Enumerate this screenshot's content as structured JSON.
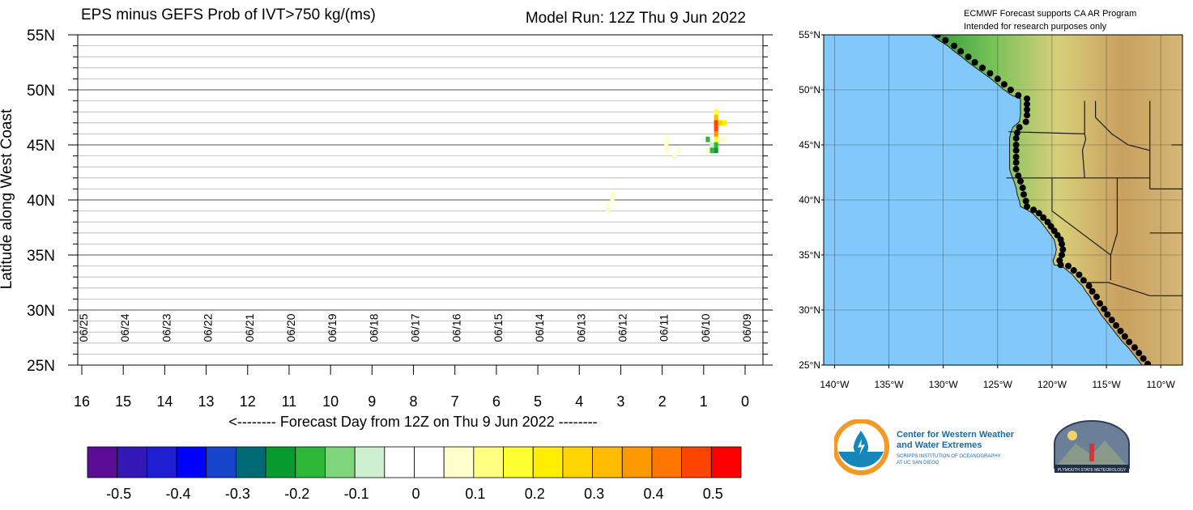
{
  "chart_data": [
    {
      "type": "heatmap",
      "title": "EPS minus GEFS Prob of IVT>750 kg/(ms)",
      "subtitle": "Model Run: 12Z Thu 9 Jun 2022",
      "xlabel": "<-------- Forecast Day from 12Z on Thu 9 Jun 2022 --------",
      "ylabel": "Latitude along West Coast",
      "xlim": [
        16,
        0
      ],
      "ylim": [
        25,
        55
      ],
      "x_ticks": [
        "16",
        "15",
        "14",
        "13",
        "12",
        "11",
        "10",
        "9",
        "8",
        "7",
        "6",
        "5",
        "4",
        "3",
        "2",
        "1",
        "0"
      ],
      "y_ticks": [
        "55N",
        "50N",
        "45N",
        "40N",
        "35N",
        "30N",
        "25N"
      ],
      "date_labels": [
        "06/25",
        "06/24",
        "06/23",
        "06/22",
        "06/21",
        "06/20",
        "06/19",
        "06/18",
        "06/17",
        "06/16",
        "06/15",
        "06/14",
        "06/13",
        "06/12",
        "06/11",
        "06/10",
        "06/09"
      ],
      "grid": true,
      "colorbar": {
        "tick_labels": [
          "-0.5",
          "-0.4",
          "-0.3",
          "-0.2",
          "-0.1",
          "0",
          "0.1",
          "0.2",
          "0.3",
          "0.4",
          "0.5"
        ],
        "colors": [
          "#5b0d97",
          "#3418b5",
          "#1e1ed2",
          "#0000ff",
          "#1645cb",
          "#006a74",
          "#079b2e",
          "#2db83a",
          "#7fd57c",
          "#cdefd0",
          "#ffffff",
          "#ffffff",
          "#ffffcc",
          "#ffff80",
          "#ffff33",
          "#ffee00",
          "#ffd400",
          "#ffbb00",
          "#ff9900",
          "#ff7700",
          "#ff4400",
          "#ff0000"
        ]
      },
      "cells": [
        {
          "day": 3.3,
          "lat": 39.0,
          "value": 0.05
        },
        {
          "day": 3.3,
          "lat": 39.5,
          "value": 0.05
        },
        {
          "day": 3.2,
          "lat": 40.0,
          "value": 0.05
        },
        {
          "day": 3.2,
          "lat": 40.5,
          "value": 0.05
        },
        {
          "day": 1.9,
          "lat": 45.5,
          "value": 0.05
        },
        {
          "day": 1.9,
          "lat": 45.0,
          "value": 0.05
        },
        {
          "day": 1.9,
          "lat": 44.5,
          "value": 0.05
        },
        {
          "day": 1.7,
          "lat": 44.0,
          "value": 0.05
        },
        {
          "day": 1.6,
          "lat": 44.5,
          "value": 0.05
        },
        {
          "day": 0.9,
          "lat": 44.5,
          "value": 0.05
        },
        {
          "day": 0.8,
          "lat": 45.0,
          "value": -0.1
        },
        {
          "day": 0.8,
          "lat": 44.5,
          "value": -0.2
        },
        {
          "day": 0.9,
          "lat": 45.5,
          "value": -0.2
        },
        {
          "day": 0.7,
          "lat": 44.5,
          "value": -0.25
        },
        {
          "day": 0.7,
          "lat": 45.0,
          "value": -0.2
        },
        {
          "day": 0.7,
          "lat": 45.5,
          "value": 0.15
        },
        {
          "day": 0.6,
          "lat": 45.5,
          "value": 0.05
        },
        {
          "day": 0.5,
          "lat": 45.5,
          "value": 0.05
        },
        {
          "day": 0.7,
          "lat": 46.0,
          "value": 0.35
        },
        {
          "day": 0.7,
          "lat": 46.5,
          "value": 0.48
        },
        {
          "day": 0.7,
          "lat": 47.0,
          "value": 0.48
        },
        {
          "day": 0.7,
          "lat": 47.5,
          "value": 0.3
        },
        {
          "day": 0.7,
          "lat": 48.0,
          "value": 0.2
        },
        {
          "day": 0.6,
          "lat": 47.0,
          "value": 0.25
        },
        {
          "day": 0.5,
          "lat": 47.0,
          "value": 0.22
        }
      ]
    },
    {
      "type": "map",
      "title": "ECMWF Forecast supports CA AR Program",
      "subtitle": "Intended for research purposes only",
      "lat_ticks": [
        "55°N",
        "50°N",
        "45°N",
        "40°N",
        "35°N",
        "30°N",
        "25°N"
      ],
      "lon_ticks": [
        "140°W",
        "135°W",
        "130°W",
        "125°W",
        "120°W",
        "115°W",
        "110°W"
      ],
      "lat_range": [
        25,
        55
      ],
      "lon_range": [
        -141,
        -108
      ],
      "coast_points": [
        [
          -130.5,
          55
        ],
        [
          -129.8,
          54.5
        ],
        [
          -129,
          54
        ],
        [
          -128.4,
          53.5
        ],
        [
          -127.7,
          53
        ],
        [
          -127.1,
          52.5
        ],
        [
          -126.4,
          52
        ],
        [
          -125.7,
          51.5
        ],
        [
          -125,
          51
        ],
        [
          -124.4,
          50.5
        ],
        [
          -123.8,
          50
        ],
        [
          -123.1,
          49.5
        ],
        [
          -122.3,
          49.2
        ],
        [
          -122.3,
          48.7
        ],
        [
          -122.3,
          48.2
        ],
        [
          -122.3,
          47.7
        ],
        [
          -122.4,
          47.1
        ],
        [
          -123.0,
          46.6
        ],
        [
          -123.2,
          46.1
        ],
        [
          -123.3,
          45.6
        ],
        [
          -123.3,
          45.0
        ],
        [
          -123.3,
          44.5
        ],
        [
          -123.3,
          43.9
        ],
        [
          -123.3,
          43.4
        ],
        [
          -123.3,
          42.8
        ],
        [
          -123.1,
          42.2
        ],
        [
          -122.9,
          41.7
        ],
        [
          -122.7,
          41.1
        ],
        [
          -122.6,
          40.5
        ],
        [
          -122.4,
          39.9
        ],
        [
          -122.3,
          39.4
        ],
        [
          -121.7,
          39.1
        ],
        [
          -121.2,
          38.8
        ],
        [
          -120.8,
          38.4
        ],
        [
          -120.4,
          38.0
        ],
        [
          -120.1,
          37.6
        ],
        [
          -119.8,
          37.2
        ],
        [
          -119.5,
          36.8
        ],
        [
          -119.2,
          36.4
        ],
        [
          -119.1,
          36.0
        ],
        [
          -119.0,
          35.5
        ],
        [
          -119.1,
          35.0
        ],
        [
          -119.3,
          34.5
        ],
        [
          -119.2,
          34.1
        ],
        [
          -118.5,
          34.0
        ],
        [
          -118.0,
          33.6
        ],
        [
          -117.5,
          33.2
        ],
        [
          -117.1,
          32.7
        ],
        [
          -116.6,
          32.2
        ],
        [
          -116.3,
          31.7
        ],
        [
          -115.9,
          31.2
        ],
        [
          -115.6,
          30.6
        ],
        [
          -115.2,
          30.1
        ],
        [
          -114.9,
          29.6
        ],
        [
          -114.5,
          29.1
        ],
        [
          -114.1,
          28.6
        ],
        [
          -113.7,
          28.1
        ],
        [
          -113.3,
          27.6
        ],
        [
          -112.9,
          27.1
        ],
        [
          -112.4,
          26.6
        ],
        [
          -112.0,
          26.1
        ],
        [
          -111.6,
          25.6
        ],
        [
          -111.2,
          25.1
        ]
      ]
    }
  ]
}
